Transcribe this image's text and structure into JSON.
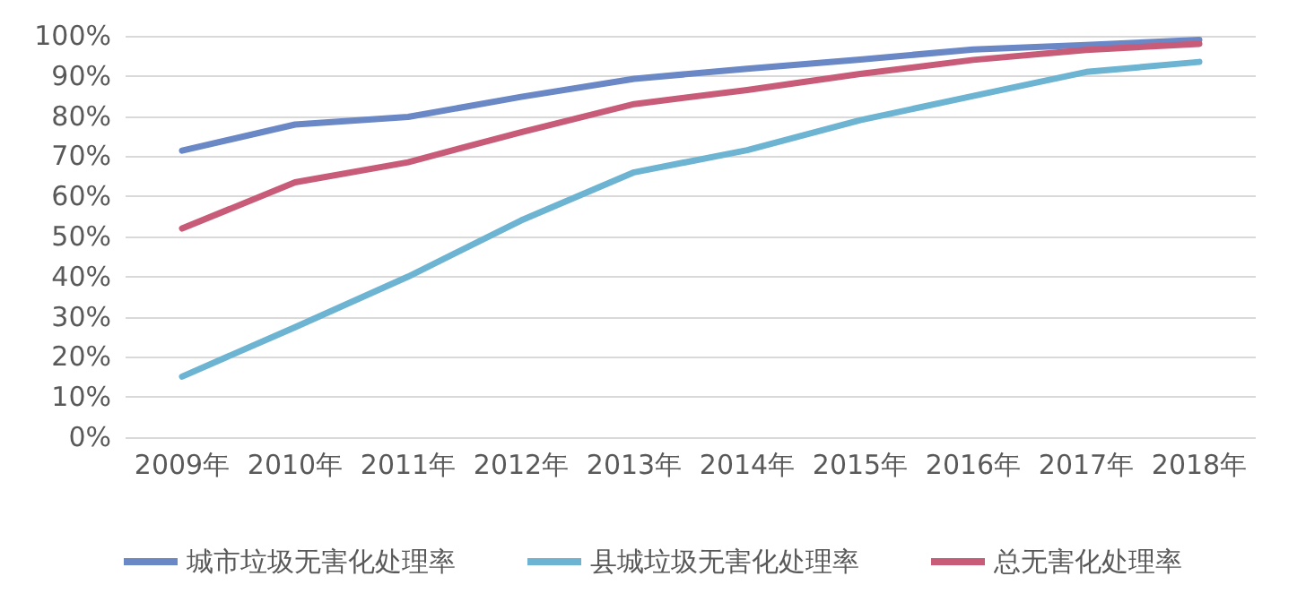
{
  "chart_data": {
    "type": "line",
    "categories": [
      "2009年",
      "2010年",
      "2011年",
      "2012年",
      "2013年",
      "2014年",
      "2015年",
      "2016年",
      "2017年",
      "2018年"
    ],
    "series": [
      {
        "name": "城市垃圾无害化处理率",
        "color": "#6a87c6",
        "values": [
          71.4,
          77.9,
          79.8,
          84.8,
          89.3,
          91.8,
          94.1,
          96.6,
          97.7,
          99.0
        ]
      },
      {
        "name": "县城垃圾无害化处理率",
        "color": "#6cb4d2",
        "values": [
          15.1,
          27.4,
          40,
          54,
          66,
          71.5,
          79,
          85,
          91,
          93.5
        ]
      },
      {
        "name": "总无害化处理率",
        "color": "#c85c78",
        "values": [
          52,
          63.5,
          68.5,
          76,
          83,
          86.5,
          90.5,
          94,
          96.5,
          98
        ]
      }
    ],
    "ylim": [
      0,
      100
    ],
    "yticks": [
      {
        "value": 0,
        "label": "0%"
      },
      {
        "value": 10,
        "label": "10%"
      },
      {
        "value": 20,
        "label": "20%"
      },
      {
        "value": 30,
        "label": "30%"
      },
      {
        "value": 40,
        "label": "40%"
      },
      {
        "value": 50,
        "label": "50%"
      },
      {
        "value": 60,
        "label": "60%"
      },
      {
        "value": 70,
        "label": "70%"
      },
      {
        "value": 80,
        "label": "80%"
      },
      {
        "value": 90,
        "label": "90%"
      },
      {
        "value": 100,
        "label": "100%"
      }
    ],
    "grid": "y",
    "legend": "bottom",
    "marker": "none",
    "line_style": "solid"
  }
}
